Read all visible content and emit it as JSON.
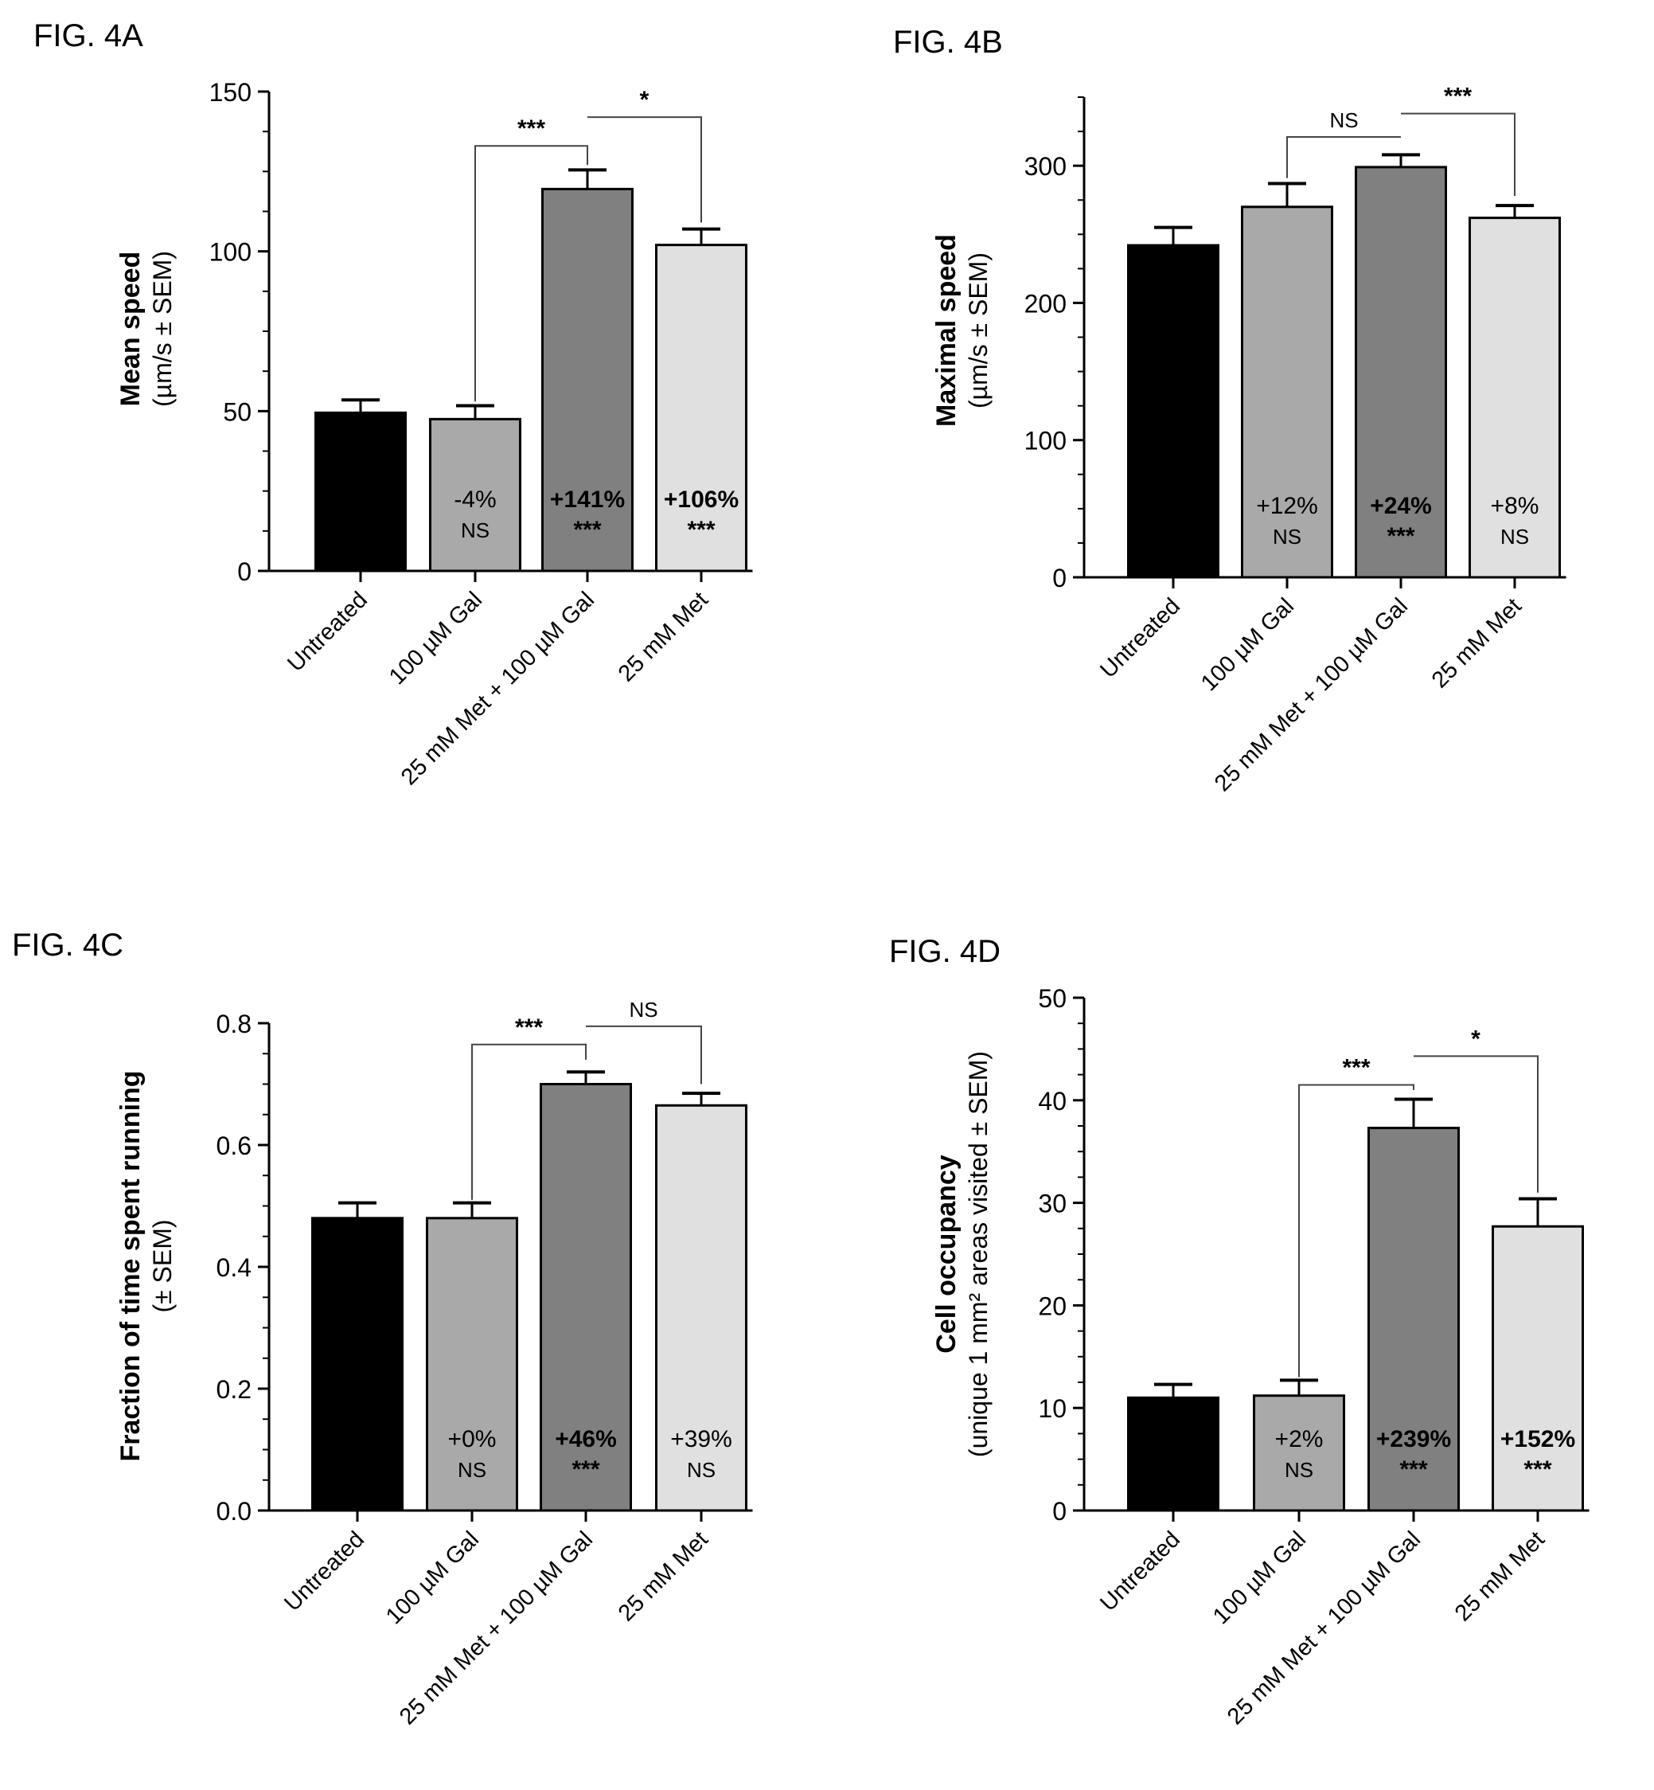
{
  "colors": {
    "axis": "#000000",
    "untreated": "#000000",
    "gal": "#a9a9a9",
    "met_gal": "#808080",
    "met": "#e0e0e0"
  },
  "chart_data": [
    {
      "type": "bar",
      "label": "FIG. 4A",
      "title": "",
      "ylabel_main": "Mean speed",
      "ylabel_sub": "(µm/s ± SEM)",
      "categories": [
        "Untreated",
        "100 µM Gal",
        "25 mM Met + 100 µM Gal",
        "25 mM Met"
      ],
      "values": [
        49.5,
        47.5,
        119.5,
        102
      ],
      "errors": [
        4,
        4.2,
        6,
        5
      ],
      "yticks": [
        0,
        50,
        100,
        150
      ],
      "ylim": [
        0,
        150
      ],
      "bar_colors": [
        "#000000",
        "#a9a9a9",
        "#808080",
        "#e0e0e0"
      ],
      "annotations": [
        {
          "bar": 1,
          "pct": "-4%",
          "sig": "NS",
          "bold": false
        },
        {
          "bar": 2,
          "pct": "+141%",
          "sig": "***",
          "bold": true
        },
        {
          "bar": 3,
          "pct": "+106%",
          "sig": "***",
          "bold": true
        }
      ],
      "brackets": [
        {
          "from": 1,
          "to": 2,
          "label": "***",
          "from_y": 53,
          "to_y": 127,
          "y": 133
        },
        {
          "from": 2,
          "to": 3,
          "label": "*",
          "from_y": 142,
          "to_y": 109,
          "y": 142
        }
      ]
    },
    {
      "type": "bar",
      "label": "FIG. 4B",
      "title": "",
      "ylabel_main": "Maximal speed",
      "ylabel_sub": "(µm/s ± SEM)",
      "categories": [
        "Untreated",
        "100 µM Gal",
        "25 mM Met + 100 µM Gal",
        "25 mM Met"
      ],
      "values": [
        242,
        270,
        299,
        262
      ],
      "errors": [
        13,
        17,
        9,
        9
      ],
      "yticks": [
        0,
        100,
        200,
        300
      ],
      "ylim": [
        0,
        350
      ],
      "bar_colors": [
        "#000000",
        "#a9a9a9",
        "#808080",
        "#e0e0e0"
      ],
      "annotations": [
        {
          "bar": 1,
          "pct": "+12%",
          "sig": "NS",
          "bold": false
        },
        {
          "bar": 2,
          "pct": "+24%",
          "sig": "***",
          "bold": true
        },
        {
          "bar": 3,
          "pct": "+8%",
          "sig": "NS",
          "bold": false
        }
      ],
      "brackets": [
        {
          "from": 1,
          "to": 2,
          "label": "NS",
          "from_y": 291,
          "to_y": 321,
          "y": 321
        },
        {
          "from": 2,
          "to": 3,
          "label": "***",
          "from_y": 338,
          "to_y": 278,
          "y": 338
        }
      ]
    },
    {
      "type": "bar",
      "label": "FIG. 4C",
      "title": "",
      "ylabel_main": "Fraction of time spent running",
      "ylabel_sub": "(± SEM)",
      "categories": [
        "Untreated",
        "100 µM Gal",
        "25 mM Met + 100 µM Gal",
        "25 mM Met"
      ],
      "values": [
        0.48,
        0.48,
        0.7,
        0.665
      ],
      "errors": [
        0.025,
        0.025,
        0.02,
        0.02
      ],
      "yticks": [
        0.0,
        0.2,
        0.4,
        0.6,
        0.8
      ],
      "ytick_labels": [
        "0.0",
        "0.2",
        "0.4",
        "0.6",
        "0.8"
      ],
      "ylim": [
        0,
        0.8
      ],
      "bar_colors": [
        "#000000",
        "#a9a9a9",
        "#808080",
        "#e0e0e0"
      ],
      "annotations": [
        {
          "bar": 1,
          "pct": "+0%",
          "sig": "NS",
          "bold": false
        },
        {
          "bar": 2,
          "pct": "+46%",
          "sig": "***",
          "bold": true
        },
        {
          "bar": 3,
          "pct": "+39%",
          "sig": "NS",
          "bold": false
        }
      ],
      "brackets": [
        {
          "from": 1,
          "to": 2,
          "label": "***",
          "from_y": 0.51,
          "to_y": 0.74,
          "y": 0.765
        },
        {
          "from": 2,
          "to": 3,
          "label": "NS",
          "from_y": 0.795,
          "to_y": 0.7,
          "y": 0.795
        }
      ]
    },
    {
      "type": "bar",
      "label": "FIG. 4D",
      "title": "",
      "ylabel_main": "Cell occupancy",
      "ylabel_sub": "(unique 1 mm² areas visited ± SEM)",
      "categories": [
        "Untreated",
        "100 µM Gal",
        "25 mM Met + 100 µM Gal",
        "25 mM Met"
      ],
      "values": [
        11,
        11.2,
        37.3,
        27.7
      ],
      "errors": [
        1.3,
        1.5,
        2.8,
        2.7
      ],
      "yticks": [
        0,
        10,
        20,
        30,
        40,
        50
      ],
      "ylim": [
        0,
        50
      ],
      "bar_colors": [
        "#000000",
        "#a9a9a9",
        "#808080",
        "#e0e0e0"
      ],
      "annotations": [
        {
          "bar": 1,
          "pct": "+2%",
          "sig": "NS",
          "bold": false
        },
        {
          "bar": 2,
          "pct": "+239%",
          "sig": "***",
          "bold": true
        },
        {
          "bar": 3,
          "pct": "+152%",
          "sig": "***",
          "bold": true
        }
      ],
      "brackets": [
        {
          "from": 1,
          "to": 2,
          "label": "***",
          "from_y": 13,
          "to_y": 41,
          "y": 41.5
        },
        {
          "from": 2,
          "to": 3,
          "label": "*",
          "from_y": 44.3,
          "to_y": 31,
          "y": 44.3
        }
      ]
    }
  ]
}
